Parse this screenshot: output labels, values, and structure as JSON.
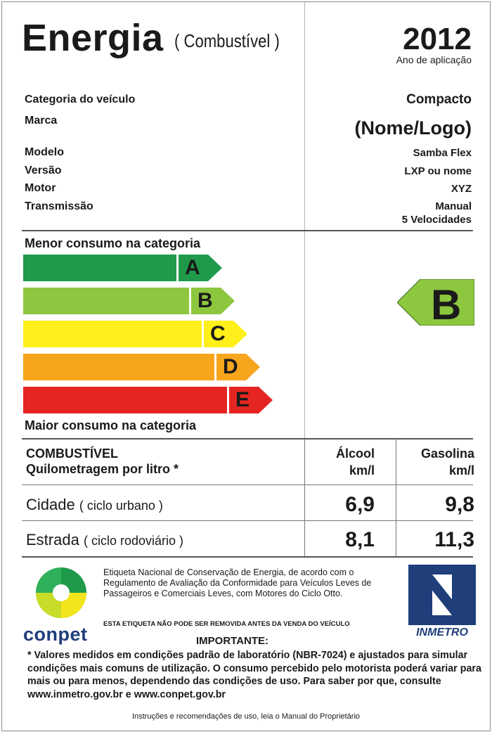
{
  "header": {
    "title": "Energia",
    "subtitle": "( Combustível )",
    "year": "2012",
    "year_caption": "Ano de aplicação"
  },
  "vehicle": {
    "category_label": "Categoria do veículo",
    "category_value": "Compacto",
    "brand_label": "Marca",
    "brand_value": "(Nome/Logo)",
    "model_label": "Modelo",
    "model_value": "Samba Flex",
    "version_label": "Versão",
    "version_value": "LXP ou nome",
    "engine_label": "Motor",
    "engine_value": "XYZ",
    "transmission_label": "Transmissão",
    "transmission_value_1": "Manual",
    "transmission_value_2": "5 Velocidades"
  },
  "scale": {
    "top_text": "Menor consumo na categoria",
    "bottom_text": "Maior consumo na categoria",
    "classes": [
      {
        "letter": "A",
        "color": "#1e9a4a"
      },
      {
        "letter": "B",
        "color": "#8dc63f"
      },
      {
        "letter": "C",
        "color": "#ffef1a"
      },
      {
        "letter": "D",
        "color": "#f7a51d"
      },
      {
        "letter": "E",
        "color": "#e52521"
      }
    ],
    "vehicle_class": "B",
    "vehicle_class_color": "#8dc63f"
  },
  "consumption": {
    "header_line1": "COMBUSTÍVEL",
    "header_line2": "Quilometragem por litro *",
    "col1_name": "Álcool",
    "col1_unit": "km/l",
    "col2_name": "Gasolina",
    "col2_unit": "km/l",
    "rows": [
      {
        "label": "Cidade",
        "detail": "( ciclo urbano )",
        "alcool": "6,9",
        "gasolina": "9,8"
      },
      {
        "label": "Estrada",
        "detail": "( ciclo rodoviário )",
        "alcool": "8,1",
        "gasolina": "11,3"
      }
    ]
  },
  "footer": {
    "conpet": "conpet",
    "inmetro": "INMETRO",
    "info_text": "Etiqueta Nacional de Conservação de Energia, de acordo com o Regulamento de Avaliação da Conformidade para Veículos Leves de Passageiros e Comerciais Leves, com Motores do Ciclo Otto.",
    "warning": "ESTA ETIQUETA NÃO PODE SER REMOVIDA ANTES DA VENDA DO VEÍCULO",
    "important_title": "IMPORTANTE:",
    "important_text": "* Valores medidos em condições padrão de laboratório (NBR-7024) e ajustados para simular condições mais comuns de utilização. O consumo percebido pelo motorista poderá variar para mais ou para menos, dependendo das condições de uso. Para saber por que, consulte www.inmetro.gov.br e www.conpet.gov.br",
    "instructions": "Instruções e recomendações de uso, leia o Manual do Proprietário"
  }
}
